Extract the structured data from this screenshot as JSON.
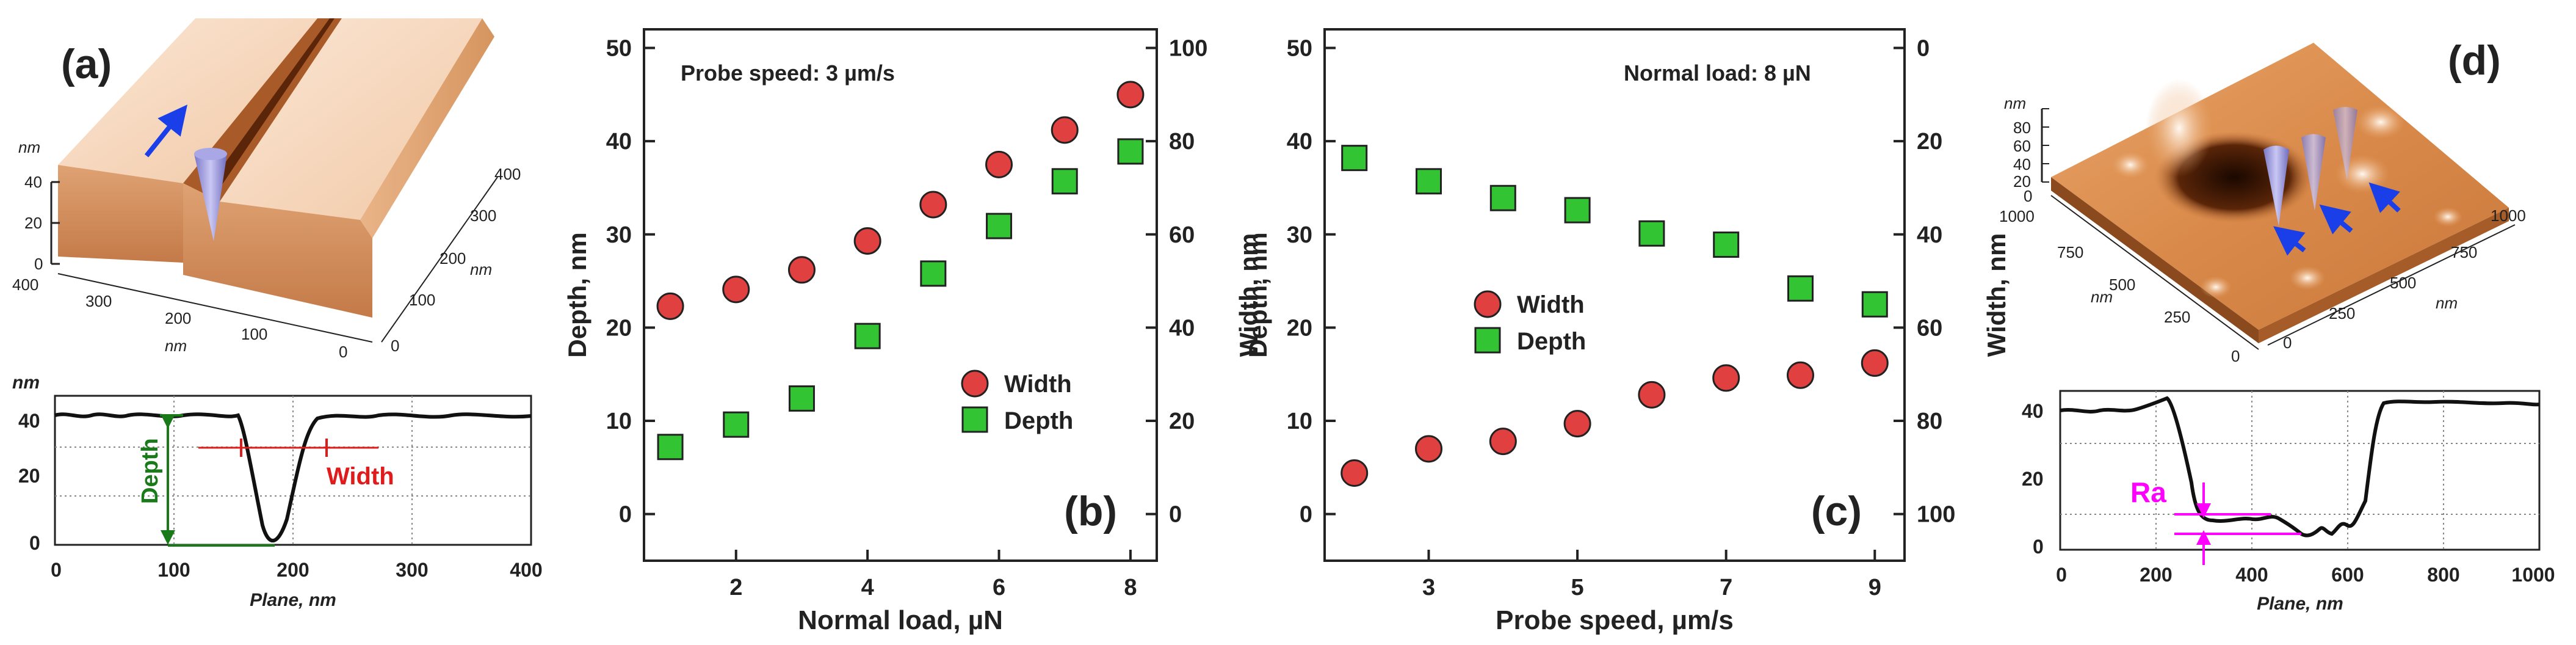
{
  "panel_a": {
    "label": "(a)",
    "surface_z_label": "nm",
    "surface_z_ticks": [
      "40",
      "20",
      "0"
    ],
    "surface_x_ticks": [
      "400",
      "300",
      "200",
      "100",
      "0"
    ],
    "surface_x_label": "nm",
    "surface_y_ticks": [
      "400",
      "300",
      "200",
      "100",
      "0"
    ],
    "surface_y_label": "nm",
    "profile": {
      "ylabel": "nm",
      "xlabel": "Plane, nm",
      "yticks": [
        "40",
        "20",
        "0"
      ],
      "xticks": [
        "0",
        "100",
        "200",
        "300",
        "400"
      ],
      "depth_label": "Depth",
      "width_label": "Width",
      "depth_color": "#1a7a1a",
      "width_color": "#e01b1b"
    }
  },
  "panel_d": {
    "label": "(d)",
    "surface_z_label": "nm",
    "surface_z_ticks": [
      "80",
      "60",
      "40",
      "20",
      "0"
    ],
    "surface_x_ticks": [
      "1000",
      "750",
      "500",
      "250",
      "0"
    ],
    "surface_x_label": "nm",
    "surface_y_ticks": [
      "1000",
      "750",
      "500",
      "250",
      "0"
    ],
    "surface_y_label": "nm",
    "profile": {
      "xlabel": "Plane, nm",
      "yticks": [
        "40",
        "20",
        "0"
      ],
      "xticks": [
        "0",
        "200",
        "400",
        "600",
        "800",
        "1000"
      ],
      "ra_label": "Ra",
      "ra_color": "#ff00ff"
    }
  },
  "chart_data": [
    {
      "type": "scatter",
      "panel": "(b)",
      "annotation": "Probe speed: 3 µm/s",
      "xlabel": "Normal load, µN",
      "ylabel": "Depth, nm",
      "y2label": "Width, nm",
      "xlim": [
        0.6,
        8.4
      ],
      "xticks": [
        2,
        4,
        6,
        8
      ],
      "ylim": [
        -5,
        52
      ],
      "yticks": [
        0,
        10,
        20,
        30,
        40,
        50
      ],
      "y2lim": [
        -10,
        104
      ],
      "y2ticks": [
        0,
        20,
        40,
        60,
        80,
        100
      ],
      "y2_reversed": false,
      "legend_position": "right",
      "series": [
        {
          "name": "Width",
          "marker": "circle",
          "color": "#e04040",
          "axis": "right",
          "x": [
            1,
            2,
            3,
            4,
            5,
            6,
            7,
            8
          ],
          "values": [
            44.6,
            48.2,
            52.4,
            58.6,
            66.4,
            75,
            82.4,
            90
          ]
        },
        {
          "name": "Depth",
          "marker": "square",
          "color": "#33c433",
          "axis": "left",
          "x": [
            1,
            2,
            3,
            4,
            5,
            6,
            7,
            8
          ],
          "values": [
            7.2,
            9.6,
            12.4,
            19.1,
            25.8,
            30.9,
            35.7,
            38.9
          ]
        }
      ]
    },
    {
      "type": "scatter",
      "panel": "(c)",
      "annotation": "Normal load: 8 µN",
      "xlabel": "Probe speed, µm/s",
      "ylabel": "Depth, nm",
      "y2label": "Width, nm",
      "xlim": [
        1.6,
        9.4
      ],
      "xticks": [
        3,
        5,
        7,
        9
      ],
      "ylim": [
        -5,
        52
      ],
      "yticks": [
        0,
        10,
        20,
        30,
        40,
        50
      ],
      "y2lim": [
        110,
        -4
      ],
      "y2ticks": [
        0,
        20,
        40,
        60,
        80,
        100
      ],
      "y2_reversed": true,
      "legend_position": "left",
      "series": [
        {
          "name": "Width",
          "marker": "circle",
          "color": "#e04040",
          "axis": "right",
          "x": [
            2,
            3,
            4,
            5,
            6,
            7,
            8,
            9
          ],
          "values": [
            91.2,
            86,
            84.4,
            80.6,
            74.4,
            70.8,
            70.2,
            67.6
          ]
        },
        {
          "name": "Depth",
          "marker": "square",
          "color": "#33c433",
          "axis": "left",
          "x": [
            2,
            3,
            4,
            5,
            6,
            7,
            8,
            9
          ],
          "values": [
            38.2,
            35.7,
            33.9,
            32.6,
            30.1,
            28.9,
            24.2,
            22.5
          ]
        }
      ]
    }
  ]
}
